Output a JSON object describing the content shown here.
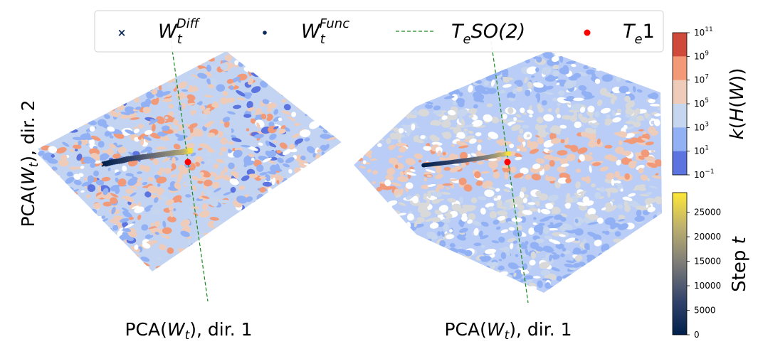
{
  "legend": {
    "items": [
      {
        "symbol": "x",
        "base": "W",
        "sub": "t",
        "sup": "Diff",
        "color": "#0b2a5a"
      },
      {
        "symbol": "dot",
        "base": "W",
        "sub": "t",
        "sup": "Func",
        "color": "#0b2a5a"
      },
      {
        "symbol": "dashed",
        "base": "T",
        "sub": "e",
        "rest": "SO(2)",
        "color": "#1a8a1a"
      },
      {
        "symbol": "red-dot",
        "base": "T",
        "sub": "e",
        "rest": "1",
        "color": "#ff0000"
      }
    ]
  },
  "chart_data": [
    {
      "type": "scatter",
      "panel": "left",
      "xlabel": "PCA(W_t), dir. 1",
      "ylabel": "PCA(W_t), dir. 2",
      "xlabel_parts": {
        "pre": "PCA(",
        "base": "W",
        "sub": "t",
        "post": "), dir. 1"
      },
      "ylabel_parts": {
        "pre": "PCA(",
        "base": "W",
        "sub": "t",
        "post": "), dir. 2"
      },
      "background": "contour of log10 condition number k(H(W)) over a diamond-shaped region",
      "series": [
        {
          "name": "W_t^Diff",
          "marker": "x",
          "trajectory": {
            "t": [
              0,
              2000,
              4000,
              6000,
              8000,
              10000,
              12000,
              14000,
              16000,
              18000,
              20000,
              22000,
              24000,
              26000,
              28000
            ],
            "x": [
              -0.62,
              -0.56,
              -0.5,
              -0.44,
              -0.38,
              -0.32,
              -0.26,
              -0.2,
              -0.14,
              -0.09,
              -0.05,
              -0.02,
              0.0,
              0.01,
              0.02
            ],
            "y": [
              -0.02,
              0.0,
              0.01,
              0.03,
              0.04,
              0.05,
              0.06,
              0.07,
              0.08,
              0.09,
              0.09,
              0.1,
              0.1,
              0.1,
              0.11
            ]
          }
        }
      ],
      "reference_line": {
        "name": "T_e SO(2)",
        "style": "dashed",
        "color": "#1a8a1a"
      },
      "reference_point": {
        "name": "T_e 1",
        "x": 0.0,
        "y": 0.0,
        "color": "#ff0000"
      }
    },
    {
      "type": "scatter",
      "panel": "right",
      "xlabel": "PCA(W_t), dir. 1",
      "xlabel_parts": {
        "pre": "PCA(",
        "base": "W",
        "sub": "t",
        "post": "), dir. 1"
      },
      "background": "contour of log10 condition number k(H(W)) over a hexagonal region",
      "series": [
        {
          "name": "W_t^Func",
          "marker": "dot",
          "trajectory": {
            "t": [
              0,
              2000,
              4000,
              6000,
              8000,
              10000,
              12000,
              14000,
              16000,
              18000,
              20000,
              22000,
              24000,
              26000,
              28000
            ],
            "x": [
              -0.62,
              -0.55,
              -0.48,
              -0.41,
              -0.35,
              -0.29,
              -0.23,
              -0.18,
              -0.13,
              -0.09,
              -0.06,
              -0.03,
              -0.01,
              0.0,
              0.01
            ],
            "y": [
              -0.03,
              -0.02,
              -0.01,
              0.0,
              0.01,
              0.02,
              0.03,
              0.04,
              0.05,
              0.06,
              0.07,
              0.07,
              0.08,
              0.08,
              0.08
            ]
          }
        }
      ],
      "reference_line": {
        "name": "T_e SO(2)",
        "style": "dashed",
        "color": "#1a8a1a"
      },
      "reference_point": {
        "name": "T_e 1",
        "x": 0.0,
        "y": 0.0,
        "color": "#ff0000"
      }
    }
  ],
  "colorbar_k": {
    "label": "k(H(W))",
    "label_parts": {
      "k": "k",
      "open": "(",
      "H": "H",
      "open2": "(",
      "W": "W",
      "close": "))"
    },
    "scale": "log",
    "ticks": [
      {
        "base": "10",
        "exp": "11"
      },
      {
        "base": "10",
        "exp": "9"
      },
      {
        "base": "10",
        "exp": "7"
      },
      {
        "base": "10",
        "exp": "5"
      },
      {
        "base": "10",
        "exp": "3"
      },
      {
        "base": "10",
        "exp": "1"
      },
      {
        "base": "10",
        "exp": "−1"
      }
    ],
    "bands": [
      "#d04a3c",
      "#f29a78",
      "#efccb9",
      "#c7d6ef",
      "#92b1f4",
      "#5b74df"
    ]
  },
  "colorbar_step": {
    "label_text": "Step ",
    "label_var": "t",
    "ticks": [
      "25000",
      "20000",
      "15000",
      "10000",
      "5000",
      "0"
    ],
    "tick_values": [
      25000,
      20000,
      15000,
      10000,
      5000,
      0
    ],
    "range": [
      0,
      29000
    ],
    "colormap": "cividis"
  }
}
